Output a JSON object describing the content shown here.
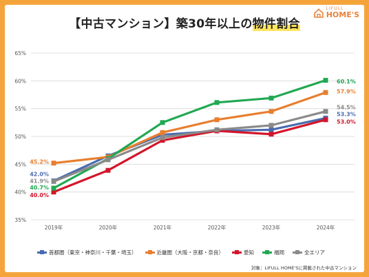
{
  "title_main": "【中古マンション】築30年以上の物件割合",
  "title_prefix": "【中古マンション】築30年以上の",
  "title_highlight": "物件割合",
  "logo": {
    "line1": "LIFULL",
    "line2": "HOME'S"
  },
  "source": "対象：LIFULL HOME'Sに掲載された中古マンション",
  "colors": {
    "frame": "#f5a43c",
    "logo": "#e9833a"
  },
  "chart_data": {
    "type": "line",
    "x": [
      "2019年",
      "2020年",
      "2021年",
      "2022年",
      "2023年",
      "2024年"
    ],
    "ylim": [
      35,
      65
    ],
    "yticks": [
      "35%",
      "40%",
      "45%",
      "50%",
      "55%",
      "60%",
      "65%"
    ],
    "ytick_values": [
      35,
      40,
      45,
      50,
      55,
      60,
      65
    ],
    "grid": true,
    "legend": "bottom",
    "series": [
      {
        "name": "首都圏（東京・神奈川・千葉・埼玉）",
        "color": "#4a6bb0",
        "values": [
          42.0,
          46.5,
          50.3,
          51.0,
          51.2,
          53.3
        ],
        "label_first": "42.0%",
        "label_last": "53.3%"
      },
      {
        "name": "近畿圏（大阪・京都・奈良）",
        "color": "#e87e2e",
        "values": [
          45.2,
          46.3,
          50.7,
          53.0,
          54.5,
          57.9
        ],
        "label_first": "45.2%",
        "label_last": "57.9%"
      },
      {
        "name": "愛知",
        "color": "#d3162a",
        "values": [
          40.0,
          43.9,
          49.3,
          51.0,
          50.4,
          53.0
        ],
        "label_first": "40.0%",
        "label_last": "53.0%"
      },
      {
        "name": "福岡",
        "color": "#21a852",
        "values": [
          40.7,
          46.0,
          52.5,
          56.1,
          56.9,
          60.1
        ],
        "label_first": "40.7%",
        "label_last": "60.1%"
      },
      {
        "name": "全エリア",
        "color": "#8a8a8a",
        "values": [
          41.9,
          45.8,
          49.8,
          51.2,
          52.0,
          54.5
        ],
        "label_first": "41.9%",
        "label_last": "54.5%"
      }
    ]
  }
}
